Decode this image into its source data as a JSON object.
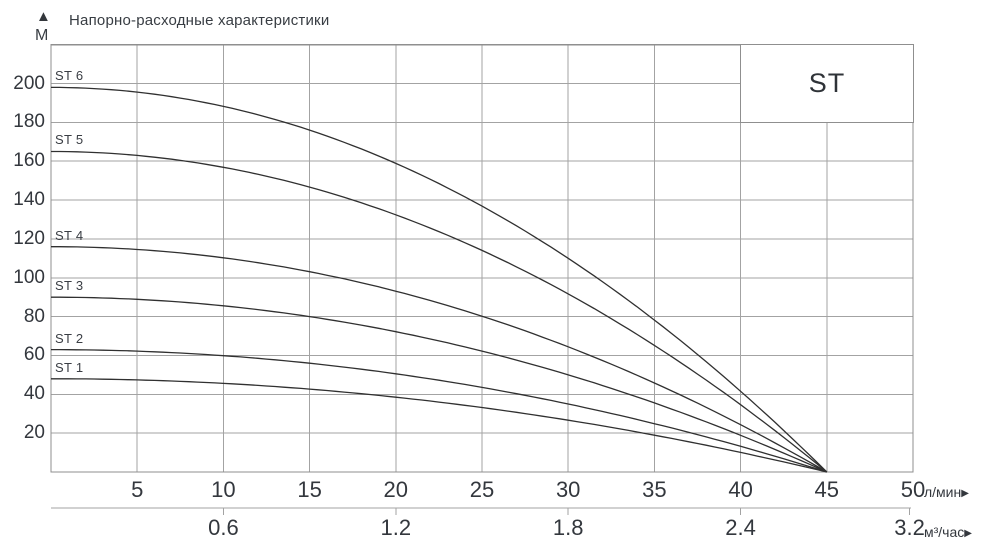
{
  "header": {
    "title": "Напорно-расходные характеристики",
    "y_axis_unit": "М",
    "up_arrow_icon": "▲"
  },
  "badge": {
    "label": "ST"
  },
  "x_axis_primary_unit": {
    "label": "л/мин",
    "arrow_icon": "▶"
  },
  "x_axis_secondary_unit": {
    "label": "м³/час",
    "arrow_icon": "▶"
  },
  "chart_data": {
    "type": "line",
    "title": "Напорно-расходные характеристики",
    "ylabel": "М",
    "xlabel_primary": "л/мин",
    "xlabel_secondary": "м³/час",
    "xlim": [
      0,
      50
    ],
    "ylim": [
      0,
      220
    ],
    "grid": true,
    "legend_position": "inline-curve-labels",
    "x_ticks_primary": [
      5,
      10,
      15,
      20,
      25,
      30,
      35,
      40,
      45,
      50
    ],
    "y_ticks": [
      20,
      40,
      60,
      80,
      100,
      120,
      140,
      160,
      180,
      200
    ],
    "x_ticks_secondary": [
      {
        "label": "0.6",
        "q": 10
      },
      {
        "label": "1.2",
        "q": 20
      },
      {
        "label": "1.8",
        "q": 30
      },
      {
        "label": "2.4",
        "q": 40
      },
      {
        "label": "3.2",
        "q": 49.8
      }
    ],
    "q_shutoff": 45,
    "series": [
      {
        "name": "ST 1",
        "h0": 48,
        "points": [
          [
            0,
            48
          ],
          [
            5,
            47.4
          ],
          [
            10,
            45.6
          ],
          [
            15,
            42.7
          ],
          [
            20,
            38.5
          ],
          [
            25,
            33.2
          ],
          [
            30,
            26.7
          ],
          [
            35,
            19.0
          ],
          [
            40,
            10.1
          ],
          [
            45,
            0
          ]
        ]
      },
      {
        "name": "ST 2",
        "h0": 63,
        "points": [
          [
            0,
            63
          ],
          [
            5,
            62.2
          ],
          [
            10,
            59.9
          ],
          [
            15,
            56.0
          ],
          [
            20,
            50.6
          ],
          [
            25,
            43.6
          ],
          [
            30,
            35.0
          ],
          [
            35,
            24.9
          ],
          [
            40,
            13.2
          ],
          [
            45,
            0
          ]
        ]
      },
      {
        "name": "ST 3",
        "h0": 90,
        "points": [
          [
            0,
            90
          ],
          [
            5,
            88.9
          ],
          [
            10,
            85.6
          ],
          [
            15,
            80.0
          ],
          [
            20,
            72.2
          ],
          [
            25,
            62.2
          ],
          [
            30,
            50.0
          ],
          [
            35,
            35.6
          ],
          [
            40,
            18.9
          ],
          [
            45,
            0
          ]
        ]
      },
      {
        "name": "ST 4",
        "h0": 116,
        "points": [
          [
            0,
            116
          ],
          [
            5,
            114.6
          ],
          [
            10,
            110.3
          ],
          [
            15,
            103.1
          ],
          [
            20,
            93.1
          ],
          [
            25,
            80.2
          ],
          [
            30,
            64.4
          ],
          [
            35,
            45.8
          ],
          [
            40,
            24.3
          ],
          [
            45,
            0
          ]
        ]
      },
      {
        "name": "ST 5",
        "h0": 165,
        "points": [
          [
            0,
            165
          ],
          [
            5,
            163.0
          ],
          [
            10,
            156.9
          ],
          [
            15,
            146.7
          ],
          [
            20,
            132.4
          ],
          [
            25,
            114.1
          ],
          [
            30,
            91.7
          ],
          [
            35,
            65.2
          ],
          [
            40,
            34.6
          ],
          [
            45,
            0
          ]
        ]
      },
      {
        "name": "ST 6",
        "h0": 198,
        "points": [
          [
            0,
            198
          ],
          [
            5,
            195.6
          ],
          [
            10,
            188.2
          ],
          [
            15,
            176.0
          ],
          [
            20,
            158.9
          ],
          [
            25,
            136.9
          ],
          [
            30,
            110.0
          ],
          [
            35,
            78.2
          ],
          [
            40,
            41.6
          ],
          [
            45,
            0
          ]
        ]
      }
    ],
    "colors": {
      "curve": "#303030",
      "grid": "#a3a3a3",
      "border": "#8f8f8f",
      "text": "#33373d"
    }
  }
}
